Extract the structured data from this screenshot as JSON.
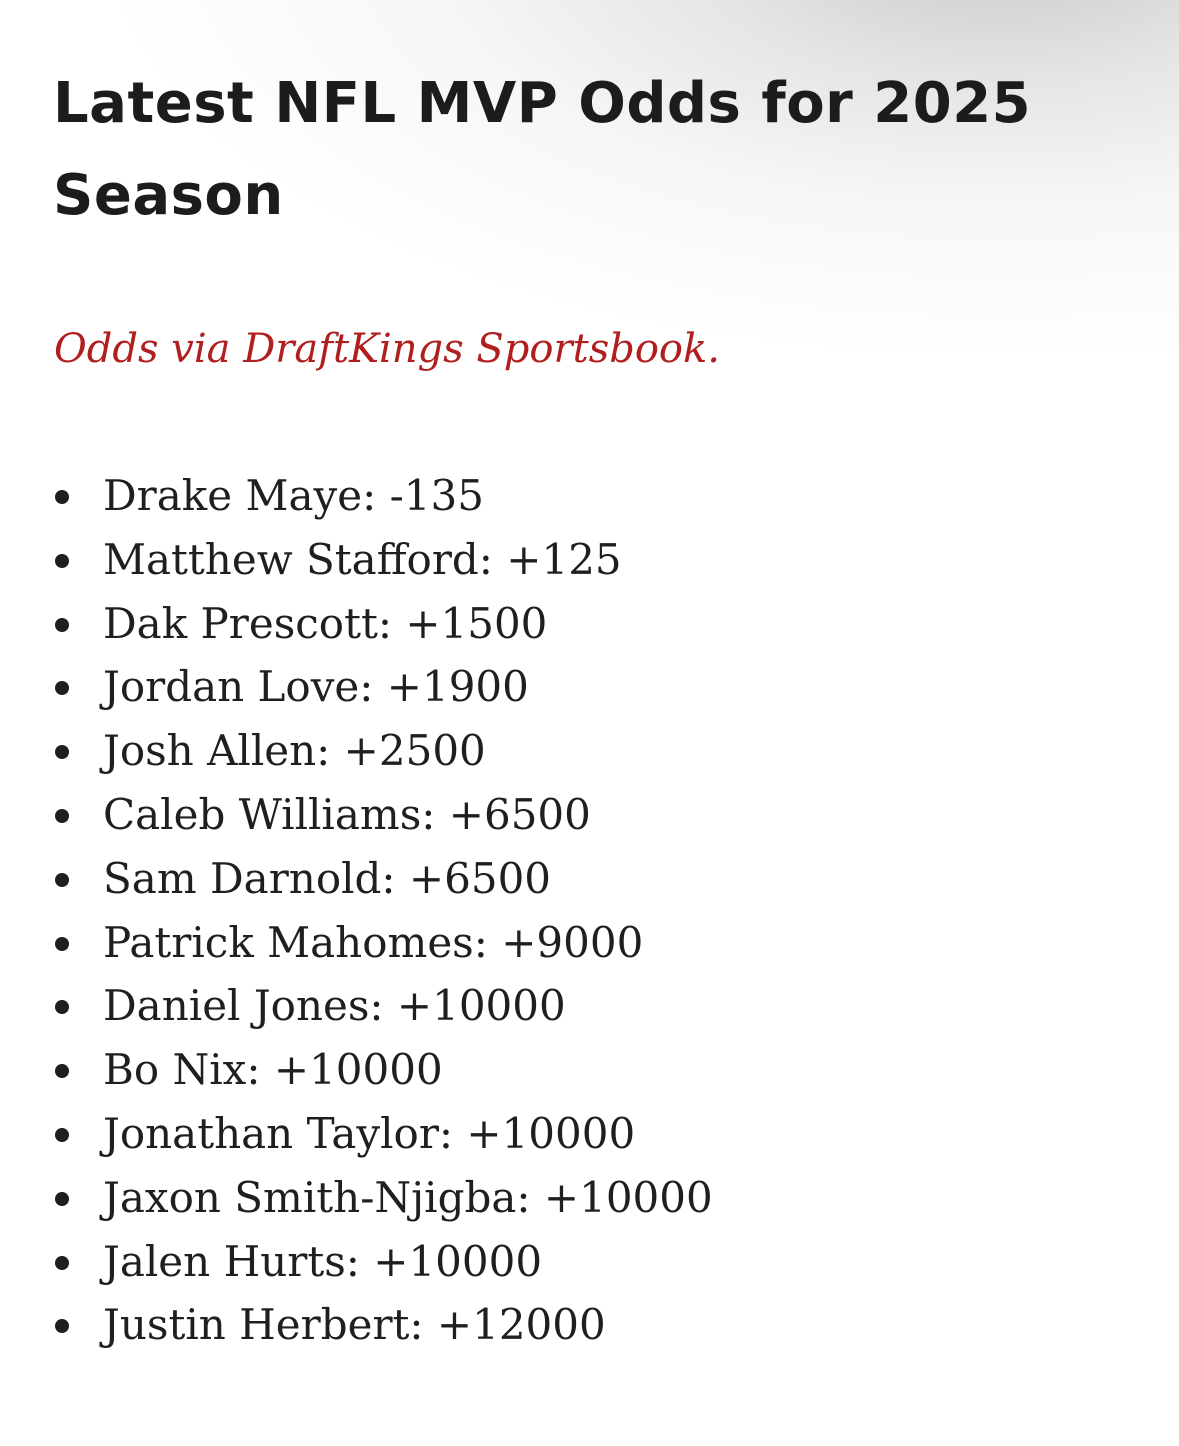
{
  "title": "Latest NFL MVP Odds for 2025 Season",
  "source_note": "Odds via DraftKings Sportsbook.",
  "colors": {
    "source_note": "#b01e1e",
    "text": "#1f1f1f"
  },
  "odds": [
    {
      "text": "Drake Maye: -135"
    },
    {
      "text": "Matthew Stafford: +125"
    },
    {
      "text": "Dak Prescott: +1500"
    },
    {
      "text": "Jordan Love: +1900"
    },
    {
      "text": "Josh Allen: +2500"
    },
    {
      "text": "Caleb Williams: +6500"
    },
    {
      "text": "Sam Darnold: +6500"
    },
    {
      "text": "Patrick Mahomes: +9000"
    },
    {
      "text": "Daniel Jones: +10000"
    },
    {
      "text": "Bo Nix: +10000"
    },
    {
      "text": "Jonathan Taylor: +10000"
    },
    {
      "text": "Jaxon Smith-Njigba: +10000"
    },
    {
      "text": "Jalen Hurts: +10000"
    },
    {
      "text": "Justin Herbert: +12000"
    }
  ]
}
